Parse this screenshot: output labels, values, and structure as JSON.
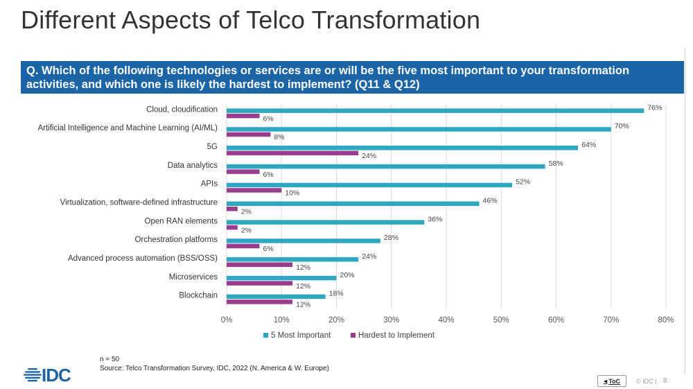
{
  "slide": {
    "title": "Different Aspects of Telco Transformation",
    "question": "Q. Which of the following technologies or services are or will be the five most important to your transformation activities, and which one is likely the hardest to implement? (Q11 & Q12)",
    "note_n": "n = 50",
    "source": "Source: Telco Transformation Survey, IDC, 2022 (N. America & W. Europe)",
    "logo_text": "IDC",
    "toc_label": "ToC",
    "copyright": "© IDC |",
    "page_number": "8"
  },
  "colors": {
    "header_bg": "#1b64a5",
    "most_important": "#2fa6c2",
    "hardest": "#9b3d8f"
  },
  "chart_data": {
    "type": "bar",
    "orientation": "horizontal",
    "categories": [
      "Cloud, cloudification",
      "Artificial Intelligence and Machine Learning (AI/ML)",
      "5G",
      "Data analytics",
      "APIs",
      "Virtualization, software-defined infrastructure",
      "Open RAN elements",
      "Orchestration platforms",
      "Advanced process automation (BSS/OSS)",
      "Microservices",
      "Blockchain"
    ],
    "series": [
      {
        "name": "5 Most Important",
        "values": [
          76,
          70,
          64,
          58,
          52,
          46,
          36,
          28,
          24,
          20,
          18
        ],
        "color": "#2fa6c2"
      },
      {
        "name": "Hardest to Implement",
        "values": [
          6,
          8,
          24,
          6,
          10,
          2,
          2,
          6,
          12,
          12,
          12
        ],
        "color": "#9b3d8f"
      }
    ],
    "value_suffix": "%",
    "xlim": [
      0,
      80
    ],
    "xticks": [
      0,
      10,
      20,
      30,
      40,
      50,
      60,
      70,
      80
    ],
    "xtick_labels": [
      "0%",
      "10%",
      "20%",
      "30%",
      "40%",
      "50%",
      "60%",
      "70%",
      "80%"
    ],
    "grid": true,
    "legend_position": "bottom"
  }
}
